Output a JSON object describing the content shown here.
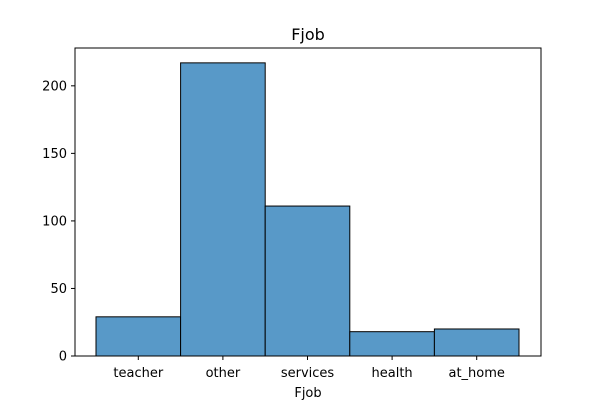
{
  "chart_data": {
    "type": "bar",
    "title": "Fjob",
    "xlabel": "Fjob",
    "ylabel": "",
    "categories": [
      "teacher",
      "other",
      "services",
      "health",
      "at_home"
    ],
    "values": [
      29,
      217,
      111,
      18,
      20
    ],
    "ylim": [
      0,
      228
    ],
    "yticks": [
      0,
      50,
      100,
      150,
      200
    ],
    "bar_color": "#5899c8",
    "edge_color": "#000000",
    "grid": false,
    "legend": "none"
  }
}
